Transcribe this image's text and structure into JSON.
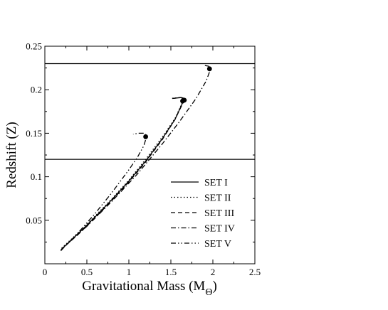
{
  "chart_data": {
    "type": "line",
    "xlabel": "Gravitational Mass (M",
    "xlabel_sub": "Θ",
    "xlabel_close": ")",
    "ylabel": "Redshift (Z)",
    "xlim": [
      0,
      2.5
    ],
    "ylim": [
      0,
      0.25
    ],
    "xticks": [
      0,
      0.5,
      1,
      1.5,
      2,
      2.5
    ],
    "xtick_labels": [
      "0",
      "0.5",
      "1",
      "1.5",
      "2",
      "2.5"
    ],
    "yticks": [
      0.05,
      0.1,
      0.15,
      0.2,
      0.25
    ],
    "ytick_labels": [
      "0.05",
      "0.1",
      "0.15",
      "0.2",
      "0.25"
    ],
    "reference_lines": [
      0.23,
      0.12
    ],
    "legend_position": "bottom-right",
    "series": [
      {
        "name": "SET I",
        "dash": "solid",
        "points": [
          [
            0.2,
            0.017
          ],
          [
            0.4,
            0.035
          ],
          [
            0.6,
            0.054
          ],
          [
            0.8,
            0.074
          ],
          [
            1.0,
            0.095
          ],
          [
            1.2,
            0.118
          ],
          [
            1.4,
            0.144
          ],
          [
            1.55,
            0.166
          ],
          [
            1.64,
            0.185
          ],
          [
            1.66,
            0.19
          ],
          [
            1.62,
            0.191
          ],
          [
            1.52,
            0.19
          ]
        ],
        "max_point": [
          1.65,
          0.188
        ]
      },
      {
        "name": "SET II",
        "dash": "dotted",
        "points": [
          [
            0.2,
            0.018
          ],
          [
            0.4,
            0.036
          ],
          [
            0.6,
            0.055
          ],
          [
            0.8,
            0.075
          ],
          [
            1.0,
            0.096
          ],
          [
            1.2,
            0.12
          ],
          [
            1.4,
            0.146
          ],
          [
            1.55,
            0.167
          ],
          [
            1.63,
            0.184
          ],
          [
            1.65,
            0.19
          ],
          [
            1.6,
            0.191
          ],
          [
            1.5,
            0.19
          ]
        ],
        "max_point": [
          1.64,
          0.187
        ]
      },
      {
        "name": "SET III",
        "dash": "dashed",
        "points": [
          [
            0.19,
            0.016
          ],
          [
            0.4,
            0.034
          ],
          [
            0.6,
            0.053
          ],
          [
            0.8,
            0.073
          ],
          [
            1.0,
            0.094
          ],
          [
            1.2,
            0.117
          ],
          [
            1.4,
            0.143
          ],
          [
            1.55,
            0.166
          ],
          [
            1.65,
            0.186
          ],
          [
            1.67,
            0.19
          ],
          [
            1.62,
            0.191
          ],
          [
            1.52,
            0.19
          ]
        ],
        "max_point": [
          1.66,
          0.188
        ]
      },
      {
        "name": "SET IV",
        "dash": "dashdot",
        "points": [
          [
            0.2,
            0.017
          ],
          [
            0.5,
            0.043
          ],
          [
            0.8,
            0.072
          ],
          [
            1.1,
            0.103
          ],
          [
            1.4,
            0.138
          ],
          [
            1.6,
            0.163
          ],
          [
            1.8,
            0.19
          ],
          [
            1.92,
            0.21
          ],
          [
            1.97,
            0.223
          ],
          [
            1.95,
            0.227
          ],
          [
            1.9,
            0.228
          ]
        ],
        "max_point": [
          1.96,
          0.224
        ]
      },
      {
        "name": "SET V",
        "dash": "dashdotdot",
        "points": [
          [
            0.19,
            0.015
          ],
          [
            0.4,
            0.036
          ],
          [
            0.6,
            0.058
          ],
          [
            0.8,
            0.082
          ],
          [
            1.0,
            0.108
          ],
          [
            1.1,
            0.122
          ],
          [
            1.18,
            0.136
          ],
          [
            1.21,
            0.146
          ],
          [
            1.19,
            0.15
          ],
          [
            1.12,
            0.15
          ],
          [
            1.05,
            0.149
          ]
        ],
        "max_point": [
          1.2,
          0.146
        ]
      }
    ]
  }
}
